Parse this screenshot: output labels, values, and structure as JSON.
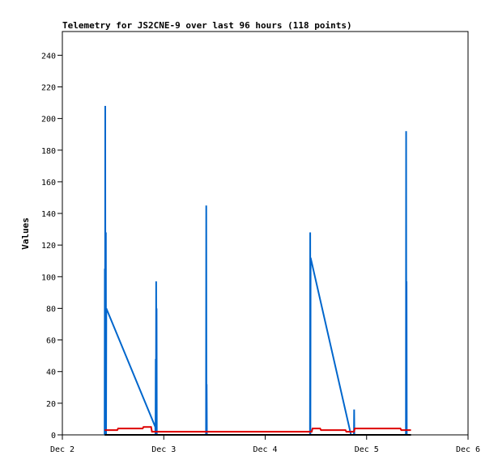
{
  "chart_data": {
    "type": "line",
    "title": "Telemetry for JS2CNE-9 over last 96 hours (118 points)",
    "xlabel": "",
    "ylabel": "Values",
    "xlim": [
      0,
      96
    ],
    "ylim": [
      0,
      255
    ],
    "x_ticks": [
      {
        "label": "Dec 2",
        "x": 0
      },
      {
        "label": "Dec 3",
        "x": 24
      },
      {
        "label": "Dec 4",
        "x": 48
      },
      {
        "label": "Dec 5",
        "x": 72
      },
      {
        "label": "Dec 6",
        "x": 96
      }
    ],
    "y_ticks": [
      0,
      20,
      40,
      60,
      80,
      100,
      120,
      140,
      160,
      180,
      200,
      220,
      240
    ],
    "grid": false,
    "legend": "none",
    "series": [
      {
        "color": "#0066cc",
        "points": [
          [
            10.0,
            0
          ],
          [
            10.05,
            105
          ],
          [
            10.1,
            0
          ],
          [
            10.15,
            208
          ],
          [
            10.2,
            0
          ],
          [
            10.3,
            128
          ],
          [
            10.35,
            0
          ],
          [
            10.4,
            80
          ],
          [
            22.0,
            5
          ],
          [
            22.05,
            0
          ],
          [
            22.1,
            48
          ],
          [
            22.15,
            0
          ],
          [
            22.2,
            97
          ],
          [
            22.25,
            0
          ],
          [
            22.3,
            80
          ],
          [
            22.35,
            0
          ],
          [
            34.0,
            0
          ],
          [
            34.05,
            145
          ],
          [
            34.1,
            0
          ],
          [
            34.15,
            32
          ],
          [
            34.2,
            0
          ],
          [
            58.6,
            0
          ],
          [
            58.65,
            128
          ],
          [
            58.7,
            0
          ],
          [
            58.75,
            112
          ],
          [
            68.3,
            0
          ],
          [
            69.0,
            0
          ],
          [
            69.05,
            16
          ],
          [
            69.1,
            0
          ],
          [
            81.3,
            0
          ],
          [
            81.35,
            192
          ],
          [
            81.4,
            0
          ],
          [
            81.45,
            97
          ],
          [
            81.5,
            0
          ]
        ]
      },
      {
        "color": "#dd0000",
        "points": [
          [
            10.0,
            3
          ],
          [
            13.0,
            3
          ],
          [
            13.2,
            4
          ],
          [
            19.0,
            4
          ],
          [
            19.2,
            5
          ],
          [
            21.0,
            5
          ],
          [
            21.2,
            2
          ],
          [
            59.0,
            2
          ],
          [
            59.2,
            4
          ],
          [
            61.0,
            4
          ],
          [
            61.2,
            3
          ],
          [
            67.0,
            3
          ],
          [
            67.2,
            2
          ],
          [
            69.0,
            2
          ],
          [
            69.2,
            4
          ],
          [
            80.0,
            4
          ],
          [
            80.2,
            3
          ],
          [
            82.5,
            3
          ]
        ]
      },
      {
        "color": "#000000",
        "points": [
          [
            10.0,
            0
          ],
          [
            82.5,
            0
          ]
        ]
      }
    ]
  }
}
